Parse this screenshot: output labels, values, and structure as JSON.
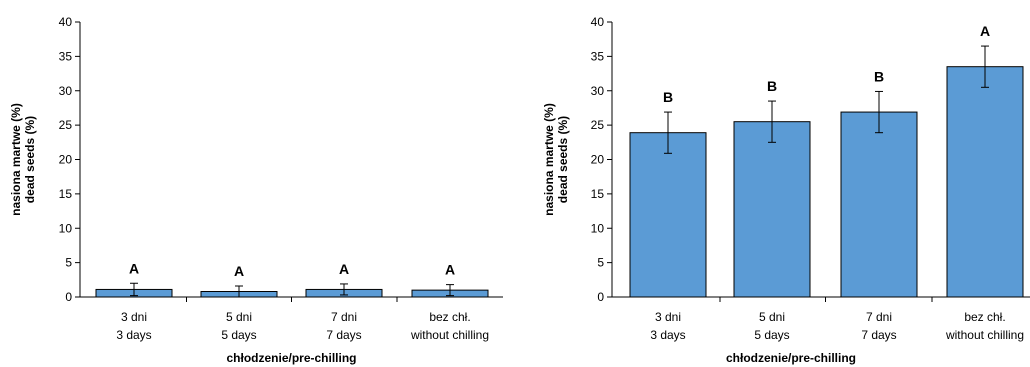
{
  "chart_data": [
    {
      "type": "bar",
      "categories": [
        [
          "3 dni",
          "3 days"
        ],
        [
          "5 dni",
          "5 days"
        ],
        [
          "7 dni",
          "7 days"
        ],
        [
          "bez chł.",
          "without chilling"
        ]
      ],
      "values": [
        1.1,
        0.8,
        1.1,
        1.0
      ],
      "errors": [
        0.9,
        0.8,
        0.8,
        0.8
      ],
      "letters": [
        "A",
        "A",
        "A",
        "A"
      ],
      "ylabel": [
        "nasiona martwe (%)",
        "dead seeds (%)"
      ],
      "xlabel": "chłodzenie/pre-chilling",
      "ylim": [
        0,
        40
      ],
      "yticks": [
        "0",
        "5",
        "10",
        "15",
        "20",
        "25",
        "30",
        "35",
        "40"
      ],
      "bar_color": "#5b9bd5",
      "grid": false
    },
    {
      "type": "bar",
      "categories": [
        [
          "3 dni",
          "3 days"
        ],
        [
          "5 dni",
          "5 days"
        ],
        [
          "7 dni",
          "7 days"
        ],
        [
          "bez chł.",
          "without chilling"
        ]
      ],
      "values": [
        23.9,
        25.5,
        26.9,
        33.5
      ],
      "errors": [
        3.0,
        3.0,
        3.0,
        3.0
      ],
      "letters": [
        "B",
        "B",
        "B",
        "A"
      ],
      "ylabel": [
        "nasiona martwe (%)",
        "dead seeds (%)"
      ],
      "xlabel": "chłodzenie/pre-chilling",
      "ylim": [
        0,
        40
      ],
      "yticks": [
        "0",
        "5",
        "10",
        "15",
        "20",
        "25",
        "30",
        "35",
        "40"
      ],
      "bar_color": "#5b9bd5",
      "grid": false
    }
  ]
}
